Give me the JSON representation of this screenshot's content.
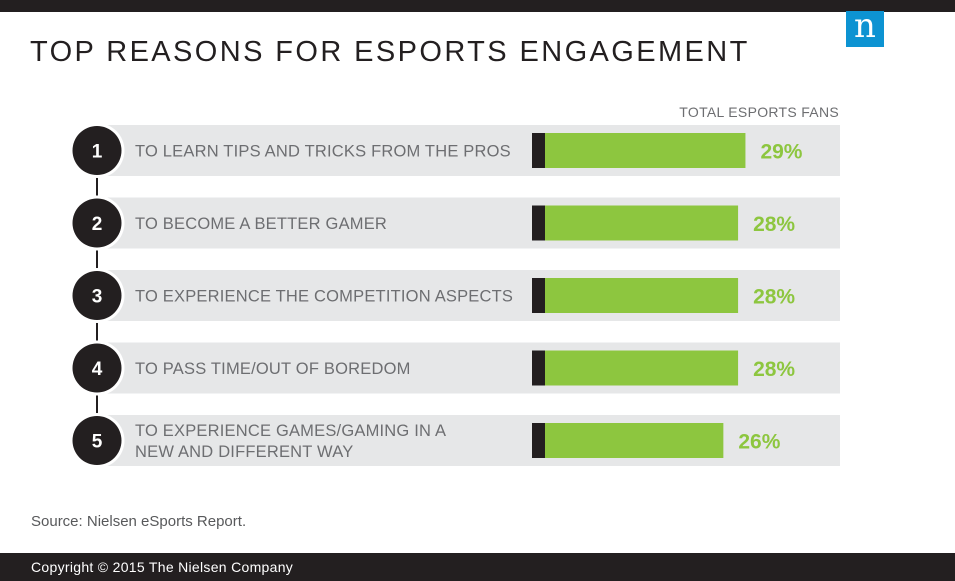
{
  "header": {
    "title": "TOP REASONS FOR ESPORTS ENGAGEMENT",
    "logo_letter": "n"
  },
  "chart_data": {
    "type": "bar",
    "orientation": "horizontal",
    "column_header": "TOTAL ESPORTS FANS",
    "categories": [
      {
        "rank": "1",
        "lines": [
          "TO LEARN TIPS AND TRICKS FROM THE PROS"
        ]
      },
      {
        "rank": "2",
        "lines": [
          "TO BECOME A BETTER GAMER"
        ]
      },
      {
        "rank": "3",
        "lines": [
          "TO EXPERIENCE THE COMPETITION ASPECTS"
        ]
      },
      {
        "rank": "4",
        "lines": [
          "TO PASS TIME/OUT OF BOREDOM"
        ]
      },
      {
        "rank": "5",
        "lines": [
          "TO EXPERIENCE GAMES/GAMING IN A",
          "NEW AND DIFFERENT WAY"
        ]
      }
    ],
    "values": [
      29,
      28,
      28,
      28,
      26
    ],
    "value_labels": [
      "29%",
      "28%",
      "28%",
      "28%",
      "26%"
    ],
    "colors": {
      "bar": "#8dc63f",
      "marker": "#231f20",
      "row_bg": "#e6e7e8",
      "circle": "#231f20",
      "value": "#8dc63f"
    }
  },
  "footer": {
    "source": "Source: Nielsen eSports Report.",
    "copyright": "Copyright © 2015 The Nielsen Company"
  }
}
